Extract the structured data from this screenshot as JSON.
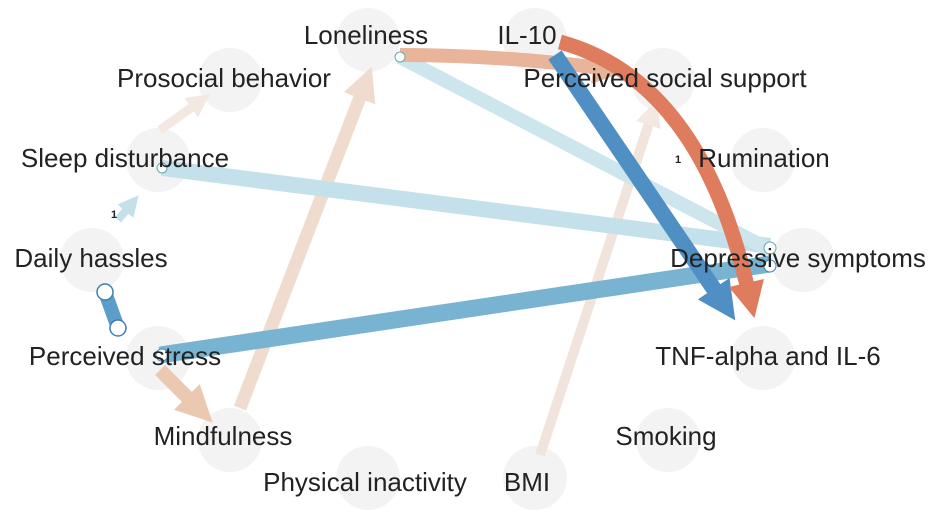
{
  "nodes": [
    {
      "label": "Loneliness"
    },
    {
      "label": "IL-10"
    },
    {
      "label": "Prosocial behavior"
    },
    {
      "label": "Perceived social support"
    },
    {
      "label": "Sleep disturbance"
    },
    {
      "label": "Rumination"
    },
    {
      "label": "Daily hassles"
    },
    {
      "label": "Depressive symptoms"
    },
    {
      "label": "Perceived stress"
    },
    {
      "label": "TNF-alpha and IL-6"
    },
    {
      "label": "Mindfulness"
    },
    {
      "label": "Smoking"
    },
    {
      "label": "Physical inactivity"
    },
    {
      "label": "BMI"
    }
  ],
  "edge_labels": [
    "1",
    "1"
  ]
}
